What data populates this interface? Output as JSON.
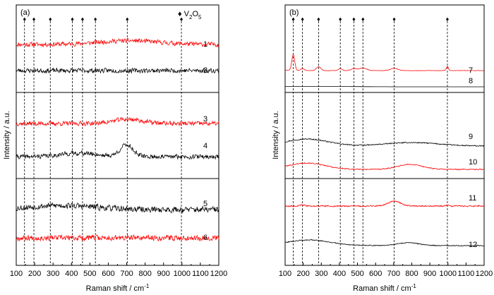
{
  "chart_data": [
    {
      "type": "line",
      "panel_label": "(a)",
      "xlabel": "Raman shift / cm",
      "xlabel_superscript": "-1",
      "ylabel": "Intensity / a.u.",
      "xlim": [
        100,
        1200
      ],
      "x_ticks": [
        100,
        200,
        300,
        400,
        500,
        600,
        700,
        800,
        900,
        1000,
        1100,
        1200
      ],
      "legend": {
        "symbol": "♦",
        "label": "V",
        "sub": "2",
        "label2": "O",
        "sub2": "5",
        "placement": "top-right"
      },
      "reference_peaks": [
        145,
        196,
        285,
        405,
        460,
        530,
        703,
        997
      ],
      "series": [
        {
          "name": "1",
          "color": "#ff0000",
          "noise": 0.9,
          "peaks": [
            [
              710,
              1.6,
              160
            ]
          ]
        },
        {
          "name": "2",
          "color": "#000000",
          "noise": 0.9,
          "peaks": []
        },
        {
          "name": "3",
          "color": "#ff0000",
          "noise": 0.9,
          "peaks": [
            [
              705,
              1.8,
              80
            ]
          ]
        },
        {
          "name": "4",
          "color": "#000000",
          "noise": 0.9,
          "peaks": [
            [
              700,
              5.0,
              35
            ],
            [
              440,
              1.5,
              100
            ]
          ]
        },
        {
          "name": "5",
          "color": "#000000",
          "noise": 1.1,
          "peaks": [
            [
              350,
              1.6,
              180
            ]
          ]
        },
        {
          "name": "6",
          "color": "#ff0000",
          "noise": 1.1,
          "peaks": []
        }
      ]
    },
    {
      "type": "line",
      "panel_label": "(b)",
      "xlabel": "Raman shift / cm",
      "xlabel_superscript": "-1",
      "ylabel": "Intensity / a.u.",
      "xlim": [
        100,
        1200
      ],
      "x_ticks": [
        100,
        200,
        300,
        400,
        500,
        600,
        700,
        800,
        900,
        1000,
        1100,
        1200
      ],
      "reference_peaks": [
        145,
        196,
        285,
        405,
        480,
        530,
        703,
        997
      ],
      "series": [
        {
          "name": "7",
          "color": "#ff0000",
          "noise": 0.08,
          "peaks": [
            [
              145,
              10.0,
              8
            ],
            [
              196,
              1.2,
              10
            ],
            [
              285,
              2.4,
              12
            ],
            [
              405,
              1.2,
              10
            ],
            [
              480,
              1.2,
              15
            ],
            [
              530,
              1.6,
              20
            ],
            [
              703,
              1.4,
              20
            ],
            [
              997,
              2.6,
              6
            ]
          ]
        },
        {
          "name": "8",
          "color": "#000000",
          "noise": 0.02,
          "peaks": [
            [
              250,
              0.6,
              200
            ]
          ]
        },
        {
          "name": "9",
          "color": "#000000",
          "noise": 0.35,
          "peaks": [
            [
              220,
              5.0,
              120
            ],
            [
              800,
              2.5,
              150
            ]
          ]
        },
        {
          "name": "10",
          "color": "#ff0000",
          "noise": 0.35,
          "peaks": [
            [
              220,
              4.5,
              100
            ],
            [
              790,
              3.5,
              70
            ]
          ]
        },
        {
          "name": "11",
          "color": "#ff0000",
          "noise": 0.45,
          "peaks": [
            [
              705,
              3.5,
              35
            ],
            [
              196,
              0.8,
              12
            ],
            [
              997,
              0.5,
              10
            ]
          ]
        },
        {
          "name": "12",
          "color": "#000000",
          "noise": 0.3,
          "peaks": [
            [
              230,
              4.0,
              120
            ],
            [
              780,
              2.0,
              60
            ]
          ]
        }
      ]
    }
  ]
}
